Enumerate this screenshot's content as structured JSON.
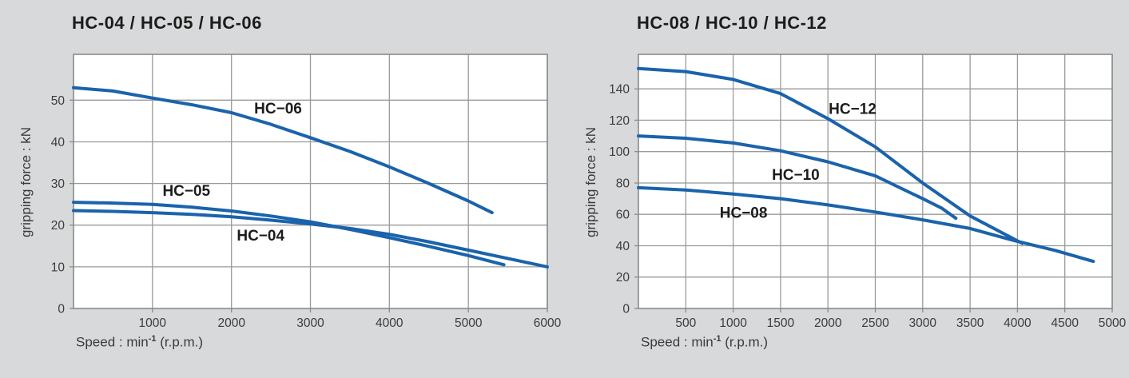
{
  "colors": {
    "background": "#d8d9da",
    "plot_background": "#ffffff",
    "grid": "#9a9a9a",
    "axis_border": "#8b8b8b",
    "curve": "#1a63ac",
    "title_text": "#1c1c1c",
    "tick_text": "#3c3c3c",
    "axis_label_text": "#3a3a3a"
  },
  "chart_data": [
    {
      "type": "line",
      "title": "HC-04 / HC-05 / HC-06",
      "ylabel": "gripping force : kN",
      "xlabel": "Speed : min⁻¹ (r.p.m.)",
      "xlabel_parts": {
        "pre": "Speed : min",
        "sup": "-1",
        "post": " (r.p.m.)"
      },
      "xlim": [
        0,
        6000
      ],
      "ylim": [
        0,
        61
      ],
      "x_ticks": [
        0,
        1000,
        2000,
        3000,
        4000,
        5000,
        6000
      ],
      "y_ticks": [
        0,
        10,
        20,
        30,
        40,
        50
      ],
      "grid": true,
      "legend_position": "inline-labels",
      "series": [
        {
          "name": "HC−04",
          "label_pos": [
            2370,
            17.5
          ],
          "points": [
            [
              0,
              23.5
            ],
            [
              500,
              23.3
            ],
            [
              1000,
              23
            ],
            [
              1500,
              22.6
            ],
            [
              2000,
              22
            ],
            [
              2500,
              21.2
            ],
            [
              3000,
              20.3
            ],
            [
              3500,
              19.2
            ],
            [
              4000,
              17.8
            ],
            [
              4500,
              16
            ],
            [
              5000,
              14
            ],
            [
              5500,
              12
            ],
            [
              6000,
              10
            ]
          ]
        },
        {
          "name": "HC−05",
          "label_pos": [
            1430,
            28.2
          ],
          "points": [
            [
              0,
              25.5
            ],
            [
              500,
              25.3
            ],
            [
              1000,
              25
            ],
            [
              1500,
              24.3
            ],
            [
              2000,
              23.4
            ],
            [
              2500,
              22.2
            ],
            [
              3000,
              20.8
            ],
            [
              3500,
              19
            ],
            [
              4000,
              17
            ],
            [
              4500,
              14.9
            ],
            [
              5000,
              12.7
            ],
            [
              5450,
              10.5
            ]
          ]
        },
        {
          "name": "HC−06",
          "label_pos": [
            2590,
            48
          ],
          "points": [
            [
              0,
              53
            ],
            [
              500,
              52.2
            ],
            [
              1000,
              50.5
            ],
            [
              1500,
              48.9
            ],
            [
              2000,
              47
            ],
            [
              2500,
              44.2
            ],
            [
              3000,
              41
            ],
            [
              3500,
              37.7
            ],
            [
              4000,
              34
            ],
            [
              4500,
              30
            ],
            [
              5000,
              25.8
            ],
            [
              5300,
              23
            ]
          ]
        }
      ]
    },
    {
      "type": "line",
      "title": "HC-08 / HC-10 / HC-12",
      "ylabel": "gripping force : kN",
      "xlabel": "Speed : min⁻¹ (r.p.m.)",
      "xlabel_parts": {
        "pre": "Speed : min",
        "sup": "-1",
        "post": " (r.p.m.)"
      },
      "xlim": [
        0,
        5000
      ],
      "ylim": [
        0,
        162
      ],
      "x_ticks": [
        0,
        500,
        1000,
        1500,
        2000,
        2500,
        3000,
        3500,
        4000,
        4500,
        5000
      ],
      "y_ticks": [
        0,
        20,
        40,
        60,
        80,
        100,
        120,
        140
      ],
      "grid": true,
      "legend_position": "inline-labels",
      "series": [
        {
          "name": "HC−08",
          "label_pos": [
            1110,
            61
          ],
          "points": [
            [
              0,
              77
            ],
            [
              500,
              75.5
            ],
            [
              1000,
              73
            ],
            [
              1500,
              70
            ],
            [
              2000,
              66
            ],
            [
              2500,
              61.5
            ],
            [
              3000,
              56.5
            ],
            [
              3500,
              51
            ],
            [
              3950,
              43.5
            ],
            [
              4400,
              37
            ],
            [
              4800,
              30
            ]
          ]
        },
        {
          "name": "HC−10",
          "label_pos": [
            1660,
            85
          ],
          "points": [
            [
              0,
              110
            ],
            [
              500,
              108.5
            ],
            [
              1000,
              105.5
            ],
            [
              1500,
              100.5
            ],
            [
              2000,
              93.5
            ],
            [
              2500,
              84.5
            ],
            [
              3000,
              70
            ],
            [
              3200,
              64
            ],
            [
              3350,
              57.5
            ]
          ]
        },
        {
          "name": "HC−12",
          "label_pos": [
            2260,
            127
          ],
          "points": [
            [
              0,
              153
            ],
            [
              500,
              151
            ],
            [
              1000,
              146
            ],
            [
              1500,
              137
            ],
            [
              2000,
              121
            ],
            [
              2500,
              103
            ],
            [
              3000,
              80
            ],
            [
              3500,
              59
            ],
            [
              4050,
              41.5
            ]
          ]
        }
      ]
    }
  ]
}
